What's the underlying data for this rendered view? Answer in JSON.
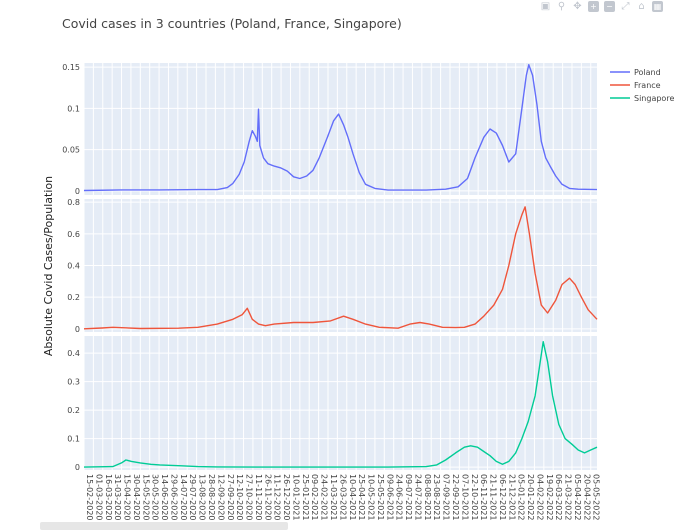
{
  "toolbar": {
    "icons": [
      "camera-icon",
      "zoom-icon",
      "pan-icon",
      "zoom-in-icon",
      "zoom-out-icon",
      "autoscale-icon",
      "home-icon",
      "plotly-logo-icon"
    ]
  },
  "chart_data": {
    "type": "line",
    "title": "Covid cases in 3 countries (Poland, France, Singapore)",
    "ylabel": "Absolute Covid Cases/Population",
    "xlabel": "",
    "grid": true,
    "legend_position": "top-right",
    "x_tick_labels": [
      "15-02-2020",
      "01-03-2020",
      "16-03-2020",
      "31-03-2020",
      "15-04-2020",
      "30-04-2020",
      "15-05-2020",
      "30-05-2020",
      "14-06-2020",
      "29-06-2020",
      "14-07-2020",
      "29-07-2020",
      "13-08-2020",
      "28-08-2020",
      "12-09-2020",
      "27-09-2020",
      "12-10-2020",
      "27-10-2020",
      "11-11-2020",
      "26-11-2020",
      "11-12-2020",
      "26-12-2020",
      "10-01-2021",
      "25-01-2021",
      "09-02-2021",
      "24-02-2021",
      "11-03-2021",
      "26-03-2021",
      "10-04-2021",
      "25-04-2021",
      "10-05-2021",
      "25-05-2021",
      "09-06-2021",
      "24-06-2021",
      "09-07-2021",
      "24-07-2021",
      "08-08-2021",
      "23-08-2021",
      "07-09-2021",
      "22-09-2021",
      "07-10-2021",
      "22-10-2021",
      "06-11-2021",
      "21-11-2021",
      "06-12-2021",
      "21-12-2021",
      "05-01-2022",
      "20-01-2022",
      "04-02-2022",
      "19-02-2022",
      "06-03-2022",
      "21-03-2022",
      "05-04-2022",
      "20-04-2022",
      "05-05-2022"
    ],
    "x_tick_labels_rotated": [
      "15-02-2020",
      "01-03-2020",
      "16-03-2020",
      "31-03-2020",
      "15-04-2020",
      "30-04-2020",
      "15-05-2020",
      "30-05-2020",
      "14-06-2020",
      "29-06-2020",
      "14-07-2020",
      "29-07-2020",
      "13-08-2020",
      "28-08-2020",
      "12-09-2020",
      "27-09-2020",
      "12-10-2020",
      "27-10-2020",
      "11-11-2020",
      "26-11-2020",
      "11-12-2020",
      "26-12-2020",
      "10-01-2021",
      "25-01-2021",
      "09-02-2021",
      "24-02-2021",
      "11-03-2021",
      "26-03-2021",
      "10-04-2021",
      "25-04-2021",
      "10-05-2021",
      "25-05-2021",
      "09-06-2021",
      "24-06-2021",
      "09-07-2021",
      "24-07-2021",
      "08-08-2021",
      "23-08-2021",
      "07-09-2021",
      "22-09-2021",
      "07-10-2021",
      "22-10-2021",
      "06-11-2021",
      "21-11-2021",
      "06-12-2021",
      "21-12-2021",
      "05-01-2022",
      "20-01-2022",
      "04-02-2022",
      "19-02-2022",
      "06-03-2022",
      "21-03-2022",
      "05-04-2022",
      "20-04-2022",
      "05-05-2022"
    ],
    "x_start": "15-02-2020",
    "x_end": "15-05-2022",
    "panels": [
      {
        "name": "Poland",
        "color": "#636efa",
        "ylim": [
          -0.005,
          0.155
        ],
        "yticks": [
          0,
          0.05,
          0.1,
          0.15
        ],
        "ytick_labels": [
          "0",
          "0.05",
          "0.1",
          "0.15"
        ],
        "points": [
          [
            "15-02-2020",
            0.0005
          ],
          [
            "15-04-2020",
            0.0012
          ],
          [
            "15-06-2020",
            0.0012
          ],
          [
            "15-08-2020",
            0.0015
          ],
          [
            "15-09-2020",
            0.0015
          ],
          [
            "01-10-2020",
            0.004
          ],
          [
            "10-10-2020",
            0.009
          ],
          [
            "20-10-2020",
            0.02
          ],
          [
            "28-10-2020",
            0.035
          ],
          [
            "05-11-2020",
            0.06
          ],
          [
            "10-11-2020",
            0.073
          ],
          [
            "15-11-2020",
            0.066
          ],
          [
            "18-11-2020",
            0.06
          ],
          [
            "20-11-2020",
            0.099
          ],
          [
            "22-11-2020",
            0.055
          ],
          [
            "28-11-2020",
            0.04
          ],
          [
            "05-12-2020",
            0.033
          ],
          [
            "15-12-2020",
            0.03
          ],
          [
            "25-12-2020",
            0.028
          ],
          [
            "05-01-2021",
            0.024
          ],
          [
            "15-01-2021",
            0.017
          ],
          [
            "25-01-2021",
            0.015
          ],
          [
            "05-02-2021",
            0.018
          ],
          [
            "15-02-2021",
            0.025
          ],
          [
            "25-02-2021",
            0.04
          ],
          [
            "10-03-2021",
            0.065
          ],
          [
            "20-03-2021",
            0.085
          ],
          [
            "28-03-2021",
            0.093
          ],
          [
            "05-04-2021",
            0.08
          ],
          [
            "12-04-2021",
            0.065
          ],
          [
            "20-04-2021",
            0.045
          ],
          [
            "30-04-2021",
            0.022
          ],
          [
            "10-05-2021",
            0.008
          ],
          [
            "25-05-2021",
            0.003
          ],
          [
            "15-06-2021",
            0.001
          ],
          [
            "15-08-2021",
            0.001
          ],
          [
            "15-09-2021",
            0.002
          ],
          [
            "05-10-2021",
            0.005
          ],
          [
            "20-10-2021",
            0.015
          ],
          [
            "01-11-2021",
            0.04
          ],
          [
            "15-11-2021",
            0.065
          ],
          [
            "25-11-2021",
            0.075
          ],
          [
            "05-12-2021",
            0.07
          ],
          [
            "15-12-2021",
            0.055
          ],
          [
            "25-12-2021",
            0.035
          ],
          [
            "05-01-2022",
            0.045
          ],
          [
            "15-01-2022",
            0.1
          ],
          [
            "22-01-2022",
            0.14
          ],
          [
            "26-01-2022",
            0.153
          ],
          [
            "01-02-2022",
            0.14
          ],
          [
            "08-02-2022",
            0.105
          ],
          [
            "15-02-2022",
            0.06
          ],
          [
            "22-02-2022",
            0.04
          ],
          [
            "01-03-2022",
            0.03
          ],
          [
            "10-03-2022",
            0.018
          ],
          [
            "20-03-2022",
            0.008
          ],
          [
            "01-04-2022",
            0.003
          ],
          [
            "15-04-2022",
            0.002
          ],
          [
            "15-05-2022",
            0.0015
          ]
        ]
      },
      {
        "name": "France",
        "color": "#ef553b",
        "ylim": [
          -0.02,
          0.82
        ],
        "yticks": [
          0,
          0.2,
          0.4,
          0.6,
          0.8
        ],
        "ytick_labels": [
          "0",
          "0.2",
          "0.4",
          "0.6",
          "0.8"
        ],
        "points": [
          [
            "15-02-2020",
            0.0
          ],
          [
            "15-03-2020",
            0.005
          ],
          [
            "01-04-2020",
            0.01
          ],
          [
            "15-05-2020",
            0.002
          ],
          [
            "15-07-2020",
            0.004
          ],
          [
            "15-08-2020",
            0.01
          ],
          [
            "15-09-2020",
            0.03
          ],
          [
            "10-10-2020",
            0.06
          ],
          [
            "25-10-2020",
            0.09
          ],
          [
            "02-11-2020",
            0.13
          ],
          [
            "10-11-2020",
            0.06
          ],
          [
            "20-11-2020",
            0.03
          ],
          [
            "01-12-2020",
            0.02
          ],
          [
            "15-12-2020",
            0.03
          ],
          [
            "15-01-2021",
            0.04
          ],
          [
            "15-02-2021",
            0.04
          ],
          [
            "15-03-2021",
            0.05
          ],
          [
            "05-04-2021",
            0.08
          ],
          [
            "20-04-2021",
            0.06
          ],
          [
            "10-05-2021",
            0.03
          ],
          [
            "01-06-2021",
            0.01
          ],
          [
            "01-07-2021",
            0.004
          ],
          [
            "20-07-2021",
            0.03
          ],
          [
            "05-08-2021",
            0.04
          ],
          [
            "20-08-2021",
            0.03
          ],
          [
            "10-09-2021",
            0.01
          ],
          [
            "01-10-2021",
            0.008
          ],
          [
            "15-10-2021",
            0.01
          ],
          [
            "01-11-2021",
            0.03
          ],
          [
            "15-11-2021",
            0.08
          ],
          [
            "01-12-2021",
            0.15
          ],
          [
            "15-12-2021",
            0.25
          ],
          [
            "25-12-2021",
            0.4
          ],
          [
            "05-01-2022",
            0.6
          ],
          [
            "15-01-2022",
            0.72
          ],
          [
            "20-01-2022",
            0.77
          ],
          [
            "27-01-2022",
            0.6
          ],
          [
            "05-02-2022",
            0.35
          ],
          [
            "15-02-2022",
            0.15
          ],
          [
            "25-02-2022",
            0.1
          ],
          [
            "10-03-2022",
            0.18
          ],
          [
            "20-03-2022",
            0.28
          ],
          [
            "01-04-2022",
            0.32
          ],
          [
            "10-04-2022",
            0.28
          ],
          [
            "20-04-2022",
            0.2
          ],
          [
            "01-05-2022",
            0.12
          ],
          [
            "15-05-2022",
            0.06
          ]
        ]
      },
      {
        "name": "Singapore",
        "color": "#00cc96",
        "ylim": [
          -0.01,
          0.46
        ],
        "yticks": [
          0,
          0.1,
          0.2,
          0.3,
          0.4
        ],
        "ytick_labels": [
          "0",
          "0.1",
          "0.2",
          "0.3",
          "0.4"
        ],
        "points": [
          [
            "15-02-2020",
            0.0
          ],
          [
            "01-04-2020",
            0.002
          ],
          [
            "15-04-2020",
            0.015
          ],
          [
            "22-04-2020",
            0.025
          ],
          [
            "01-05-2020",
            0.02
          ],
          [
            "15-05-2020",
            0.015
          ],
          [
            "01-06-2020",
            0.01
          ],
          [
            "15-06-2020",
            0.008
          ],
          [
            "15-07-2020",
            0.005
          ],
          [
            "15-08-2020",
            0.002
          ],
          [
            "15-09-2020",
            0.001
          ],
          [
            "15-12-2020",
            0.0
          ],
          [
            "15-06-2021",
            0.0
          ],
          [
            "15-08-2021",
            0.002
          ],
          [
            "01-09-2021",
            0.008
          ],
          [
            "15-09-2021",
            0.025
          ],
          [
            "01-10-2021",
            0.05
          ],
          [
            "15-10-2021",
            0.07
          ],
          [
            "25-10-2021",
            0.075
          ],
          [
            "05-11-2021",
            0.07
          ],
          [
            "15-11-2021",
            0.055
          ],
          [
            "25-11-2021",
            0.04
          ],
          [
            "05-12-2021",
            0.02
          ],
          [
            "15-12-2021",
            0.01
          ],
          [
            "25-12-2021",
            0.02
          ],
          [
            "05-01-2022",
            0.05
          ],
          [
            "15-01-2022",
            0.1
          ],
          [
            "25-01-2022",
            0.16
          ],
          [
            "05-02-2022",
            0.25
          ],
          [
            "12-02-2022",
            0.35
          ],
          [
            "18-02-2022",
            0.44
          ],
          [
            "25-02-2022",
            0.37
          ],
          [
            "05-03-2022",
            0.25
          ],
          [
            "15-03-2022",
            0.15
          ],
          [
            "25-03-2022",
            0.1
          ],
          [
            "05-04-2022",
            0.08
          ],
          [
            "15-04-2022",
            0.06
          ],
          [
            "25-04-2022",
            0.05
          ],
          [
            "05-05-2022",
            0.06
          ],
          [
            "15-05-2022",
            0.07
          ]
        ]
      }
    ]
  }
}
